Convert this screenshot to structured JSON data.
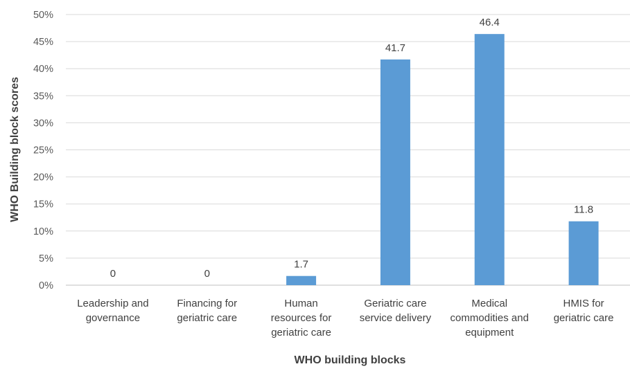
{
  "chart_data": {
    "type": "bar",
    "xlabel": "WHO building blocks",
    "ylabel": "WHO Building block scores",
    "ylim": [
      0,
      50
    ],
    "y_ticks": [
      "0%",
      "5%",
      "10%",
      "15%",
      "20%",
      "25%",
      "30%",
      "35%",
      "40%",
      "45%",
      "50%"
    ],
    "grid": true,
    "legend": "none",
    "bar_color": "#5B9BD5",
    "categories": [
      [
        "Leadership and",
        "governance"
      ],
      [
        "Financing for",
        "geriatric care"
      ],
      [
        "Human",
        "resources for",
        "geriatric care"
      ],
      [
        "Geriatric care",
        "service delivery"
      ],
      [
        "Medical",
        "commodities and",
        "equipment"
      ],
      [
        "HMIS for",
        "geriatric care"
      ]
    ],
    "values": [
      0,
      0,
      1.7,
      41.7,
      46.4,
      11.8
    ],
    "data_labels": [
      "0",
      "0",
      "1.7",
      "41.7",
      "46.4",
      "11.8"
    ]
  }
}
